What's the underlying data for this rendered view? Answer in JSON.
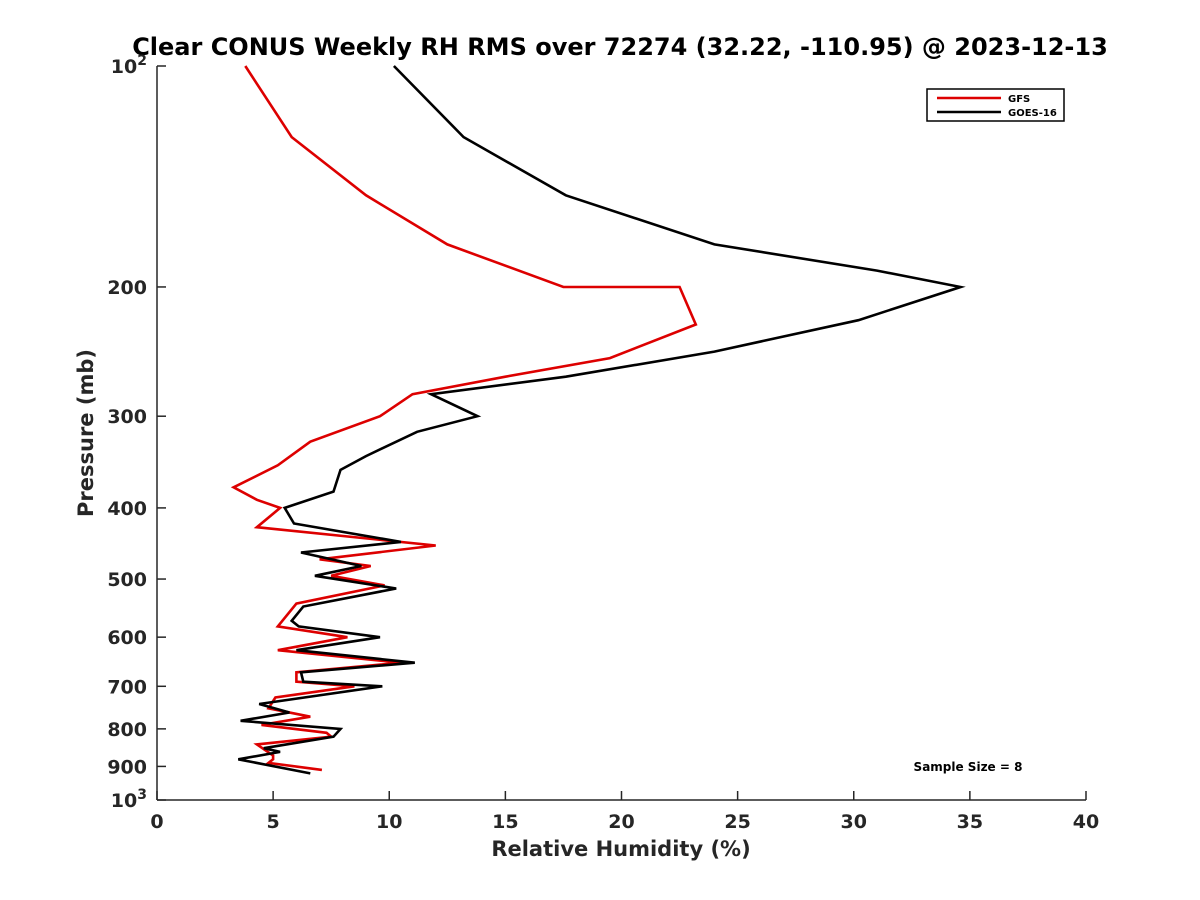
{
  "chart_data": {
    "type": "line",
    "title": "Clear CONUS Weekly RH RMS over 72274 (32.22, -110.95) @ 2023-12-13",
    "xlabel": "Relative Humidity (%)",
    "ylabel": "Pressure (mb)",
    "xlim": [
      0,
      40
    ],
    "ylim": [
      100,
      1000
    ],
    "y_scale": "log",
    "y_reversed": true,
    "x_ticks": [
      0,
      5,
      10,
      15,
      20,
      25,
      30,
      35,
      40
    ],
    "x_tick_labels": [
      "0",
      "5",
      "10",
      "15",
      "20",
      "25",
      "30",
      "35",
      "40"
    ],
    "y_ticks": [
      100,
      200,
      300,
      400,
      500,
      600,
      700,
      800,
      900,
      1000
    ],
    "y_tick_labels": [
      {
        "base": "10",
        "exp": "2"
      },
      {
        "base": "200"
      },
      {
        "base": "300"
      },
      {
        "base": "400"
      },
      {
        "base": "500"
      },
      {
        "base": "600"
      },
      {
        "base": "700"
      },
      {
        "base": "800"
      },
      {
        "base": "900"
      },
      {
        "base": "10",
        "exp": "3"
      }
    ],
    "legend_position": "top-right",
    "annotation": "Sample Size = 8",
    "grid": false,
    "series": [
      {
        "name": "GFS",
        "color": "#dd0000",
        "points": [
          [
            3.8,
            100
          ],
          [
            5.8,
            125
          ],
          [
            9.0,
            150
          ],
          [
            12.5,
            175
          ],
          [
            17.5,
            200
          ],
          [
            22.5,
            200
          ],
          [
            23.2,
            225
          ],
          [
            19.5,
            250
          ],
          [
            15.0,
            265
          ],
          [
            11.0,
            280
          ],
          [
            9.6,
            300
          ],
          [
            6.6,
            325
          ],
          [
            5.2,
            350
          ],
          [
            3.3,
            375
          ],
          [
            4.3,
            390
          ],
          [
            5.3,
            400
          ],
          [
            4.3,
            425
          ],
          [
            12.0,
            450
          ],
          [
            7.0,
            470
          ],
          [
            9.2,
            480
          ],
          [
            7.5,
            495
          ],
          [
            9.8,
            510
          ],
          [
            6.0,
            540
          ],
          [
            5.2,
            580
          ],
          [
            8.2,
            600
          ],
          [
            5.2,
            625
          ],
          [
            10.5,
            650
          ],
          [
            6.0,
            670
          ],
          [
            6.0,
            690
          ],
          [
            8.5,
            700
          ],
          [
            5.1,
            725
          ],
          [
            4.8,
            750
          ],
          [
            6.6,
            770
          ],
          [
            4.5,
            790
          ],
          [
            7.3,
            810
          ],
          [
            7.5,
            820
          ],
          [
            4.3,
            840
          ],
          [
            5.0,
            870
          ],
          [
            5.0,
            880
          ],
          [
            4.8,
            890
          ],
          [
            7.1,
            910
          ]
        ]
      },
      {
        "name": "GOES-16",
        "color": "#000000",
        "points": [
          [
            10.2,
            100
          ],
          [
            13.2,
            125
          ],
          [
            17.6,
            150
          ],
          [
            24.0,
            175
          ],
          [
            31.0,
            190
          ],
          [
            34.6,
            200
          ],
          [
            30.2,
            222
          ],
          [
            24.0,
            245
          ],
          [
            17.6,
            265
          ],
          [
            11.8,
            280
          ],
          [
            13.8,
            300
          ],
          [
            11.2,
            315
          ],
          [
            9.0,
            340
          ],
          [
            7.9,
            355
          ],
          [
            7.6,
            380
          ],
          [
            5.5,
            400
          ],
          [
            5.9,
            420
          ],
          [
            10.5,
            445
          ],
          [
            6.2,
            460
          ],
          [
            8.8,
            480
          ],
          [
            6.8,
            495
          ],
          [
            10.3,
            515
          ],
          [
            6.3,
            545
          ],
          [
            5.8,
            570
          ],
          [
            6.1,
            580
          ],
          [
            9.6,
            600
          ],
          [
            6.0,
            625
          ],
          [
            11.1,
            650
          ],
          [
            6.2,
            670
          ],
          [
            6.3,
            690
          ],
          [
            9.7,
            700
          ],
          [
            4.4,
            740
          ],
          [
            5.7,
            760
          ],
          [
            3.6,
            780
          ],
          [
            7.9,
            800
          ],
          [
            7.6,
            820
          ],
          [
            4.6,
            850
          ],
          [
            5.3,
            860
          ],
          [
            3.5,
            880
          ],
          [
            6.6,
            920
          ]
        ]
      }
    ]
  }
}
